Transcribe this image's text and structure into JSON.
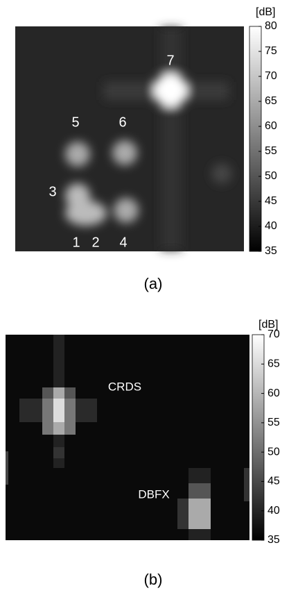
{
  "chart_data": [
    {
      "type": "heatmap",
      "caption": "(a)",
      "colorbar_label": "[dB]",
      "zlim": [
        35,
        80
      ],
      "zticks": [
        35,
        40,
        45,
        50,
        55,
        60,
        65,
        70,
        75,
        80
      ],
      "annotations": [
        "7",
        "5",
        "6",
        "3",
        "1",
        "2",
        "4"
      ]
    },
    {
      "type": "heatmap",
      "caption": "(b)",
      "colorbar_label": "[dB]",
      "zlim": [
        35,
        70
      ],
      "zticks": [
        35,
        40,
        45,
        50,
        55,
        60,
        65,
        70
      ],
      "annotations": [
        "CRDS",
        "DBFX"
      ]
    }
  ]
}
